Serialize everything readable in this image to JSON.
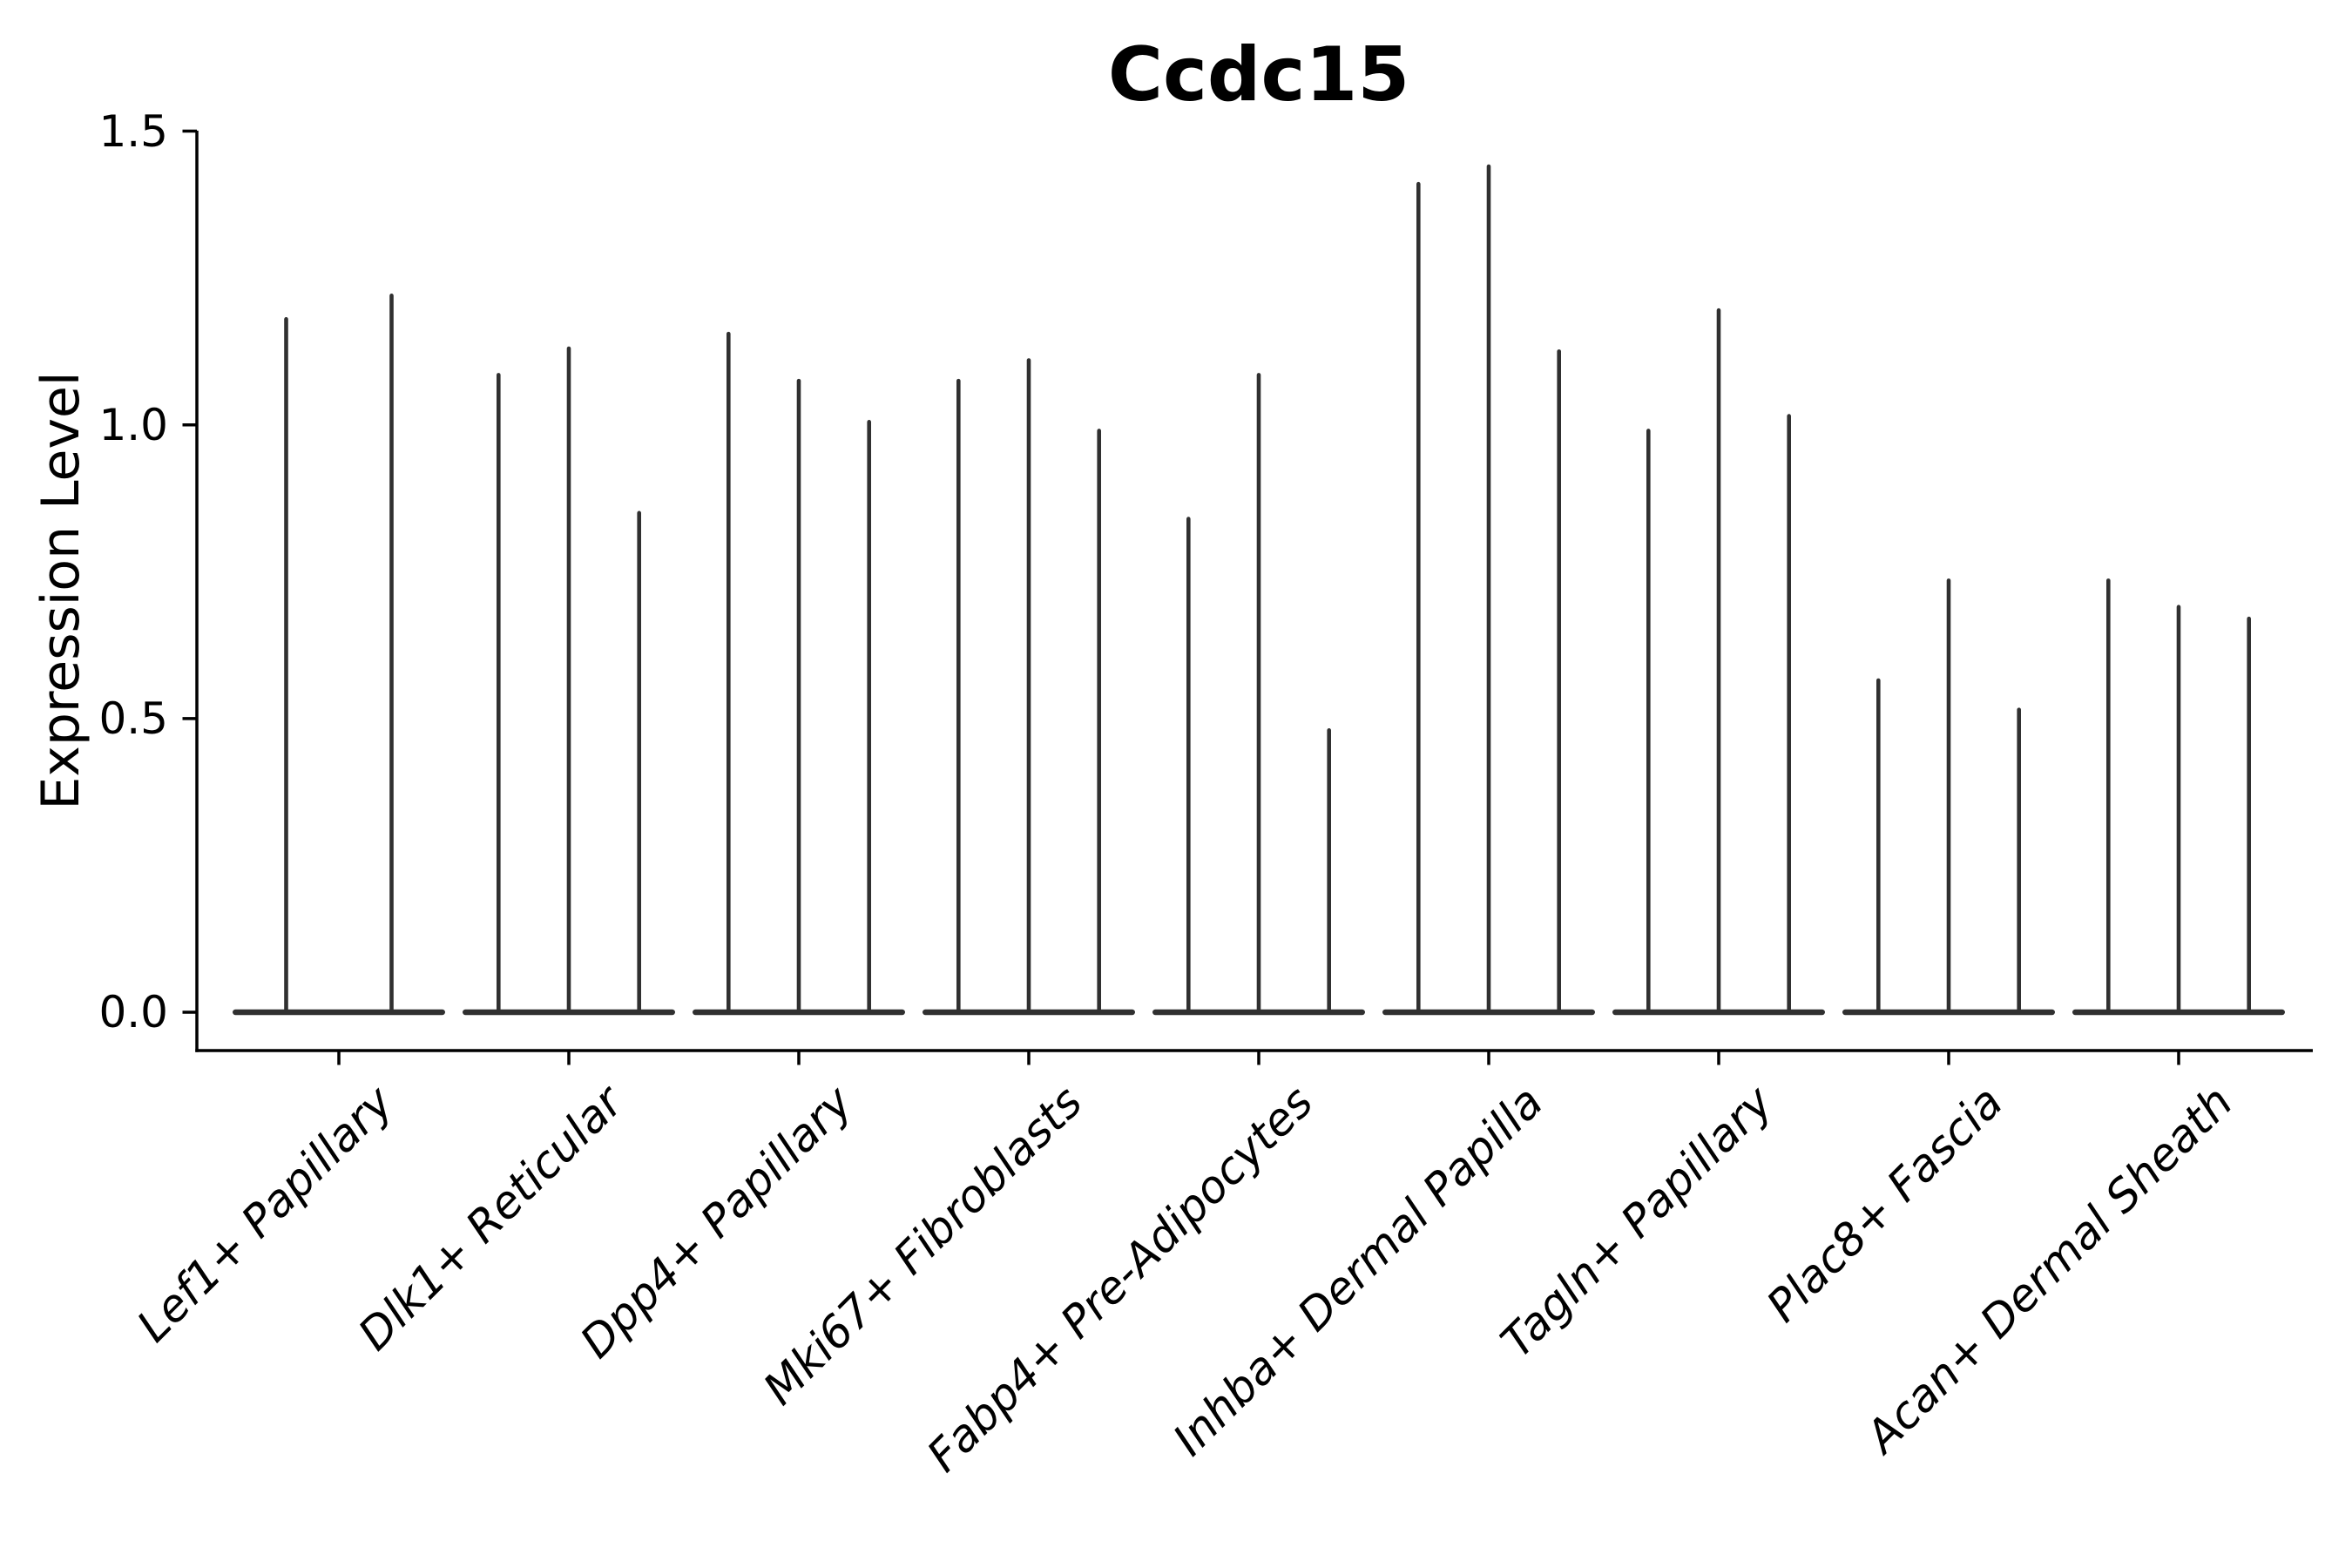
{
  "chart_data": {
    "type": "violin",
    "title": "Ccdc15",
    "ylabel": "Expression Level",
    "xlabel": "",
    "ylim": [
      0,
      1.5
    ],
    "y_ticks": [
      "0.0",
      "0.5",
      "1.0",
      "1.5"
    ],
    "legend": "none",
    "grid": false,
    "violin_shape": "density collapsed at 0 with a thin spike rising to the maximum expression value",
    "categories": [
      "Lef1+ Papillary",
      "Dlk1+ Reticular",
      "Dpp4+ Papillary",
      "Mki67+ Fibroblasts",
      "Fabp4+ Pre-Adipocytes",
      "Inhba+ Dermal Papilla",
      "Tagln+ Papillary",
      "Plac8+ Fascia",
      "Acan+ Dermal Sheath"
    ],
    "groups": [
      {
        "label": "Lef1+ Papillary",
        "violin_peaks": [
          1.18,
          1.22
        ]
      },
      {
        "label": "Dlk1+ Reticular",
        "violin_peaks": [
          1.085,
          1.13,
          0.85
        ]
      },
      {
        "label": "Dpp4+ Papillary",
        "violin_peaks": [
          1.155,
          1.075,
          1.005
        ]
      },
      {
        "label": "Mki67+ Fibroblasts",
        "violin_peaks": [
          1.075,
          1.11,
          0.99
        ]
      },
      {
        "label": "Fabp4+ Pre-Adipocytes",
        "violin_peaks": [
          0.84,
          1.085,
          0.48
        ]
      },
      {
        "label": "Inhba+ Dermal Papilla",
        "violin_peaks": [
          1.41,
          1.44,
          1.125
        ]
      },
      {
        "label": "Tagln+ Papillary",
        "violin_peaks": [
          0.99,
          1.195,
          1.015
        ]
      },
      {
        "label": "Plac8+ Fascia",
        "violin_peaks": [
          0.565,
          0.735,
          0.515
        ]
      },
      {
        "label": "Acan+ Dermal Sheath",
        "violin_peaks": [
          0.735,
          0.69,
          0.67
        ]
      }
    ],
    "colors": {
      "violin": "#303030",
      "axis": "#000000",
      "text": "#000000",
      "background": "#ffffff"
    }
  }
}
